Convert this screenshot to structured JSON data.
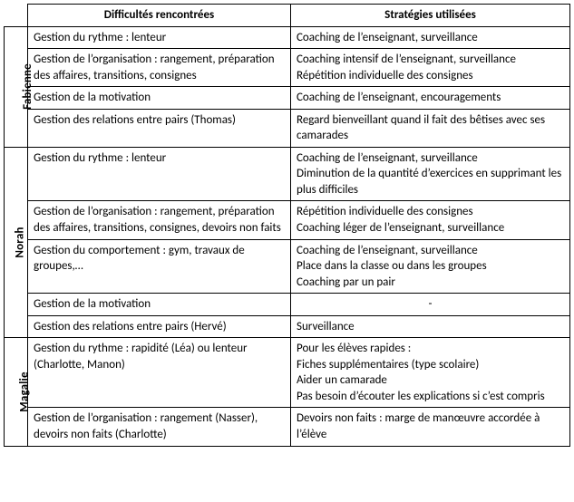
{
  "headers": {
    "col1": "Difficultés rencontrées",
    "col2": "Stratégies utilisées"
  },
  "sections": {
    "fabienne": {
      "label": "Fabienne",
      "rows": [
        {
          "d": "Gestion du rythme :  lenteur",
          "s": "Coaching de l’enseignant, surveillance"
        },
        {
          "d": "Gestion de l’organisation : rangement, préparation des affaires, transitions, consignes",
          "s": "Coaching intensif de l’enseignant, surveillance\nRépétition individuelle des consignes"
        },
        {
          "d": "Gestion de la motivation",
          "s": "Coaching de l’enseignant, encouragements"
        },
        {
          "d": "Gestion des relations entre pairs (Thomas)",
          "s": "Regard bienveillant quand il fait des bêtises avec ses camarades"
        }
      ]
    },
    "norah": {
      "label": "Norah",
      "rows": [
        {
          "d": "Gestion du rythme : lenteur",
          "s": "Coaching de l’enseignant, surveillance\nDiminution de la quantité d’exercices en supprimant les plus difficiles"
        },
        {
          "d": "Gestion de l’organisation : rangement, préparation des affaires, transitions, consignes, devoirs non faits",
          "s": "Répétition individuelle des consignes\nCoaching léger de l’enseignant, surveillance"
        },
        {
          "d": "Gestion du comportement : gym, travaux de groupes,…",
          "s": "Coaching de l’enseignant, surveillance\nPlace dans la classe ou dans les groupes\nCoaching par un pair"
        },
        {
          "d": "Gestion de la motivation",
          "s": "-"
        },
        {
          "d": "Gestion des relations entre pairs (Hervé)",
          "s": "Surveillance"
        }
      ]
    },
    "magalie": {
      "label": "Magalie",
      "rows": [
        {
          "d": "Gestion du rythme : rapidité (Léa) ou lenteur (Charlotte, Manon)",
          "s": "Pour les élèves rapides :\nFiches supplémentaires (type scolaire)\nAider un camarade\nPas besoin d’écouter les explications si c’est compris"
        },
        {
          "d": "Gestion de l’organisation : rangement (Nasser), devoirs non faits (Charlotte)",
          "s": "Devoirs non faits : marge de manœuvre accordée à l’élève"
        }
      ]
    }
  }
}
